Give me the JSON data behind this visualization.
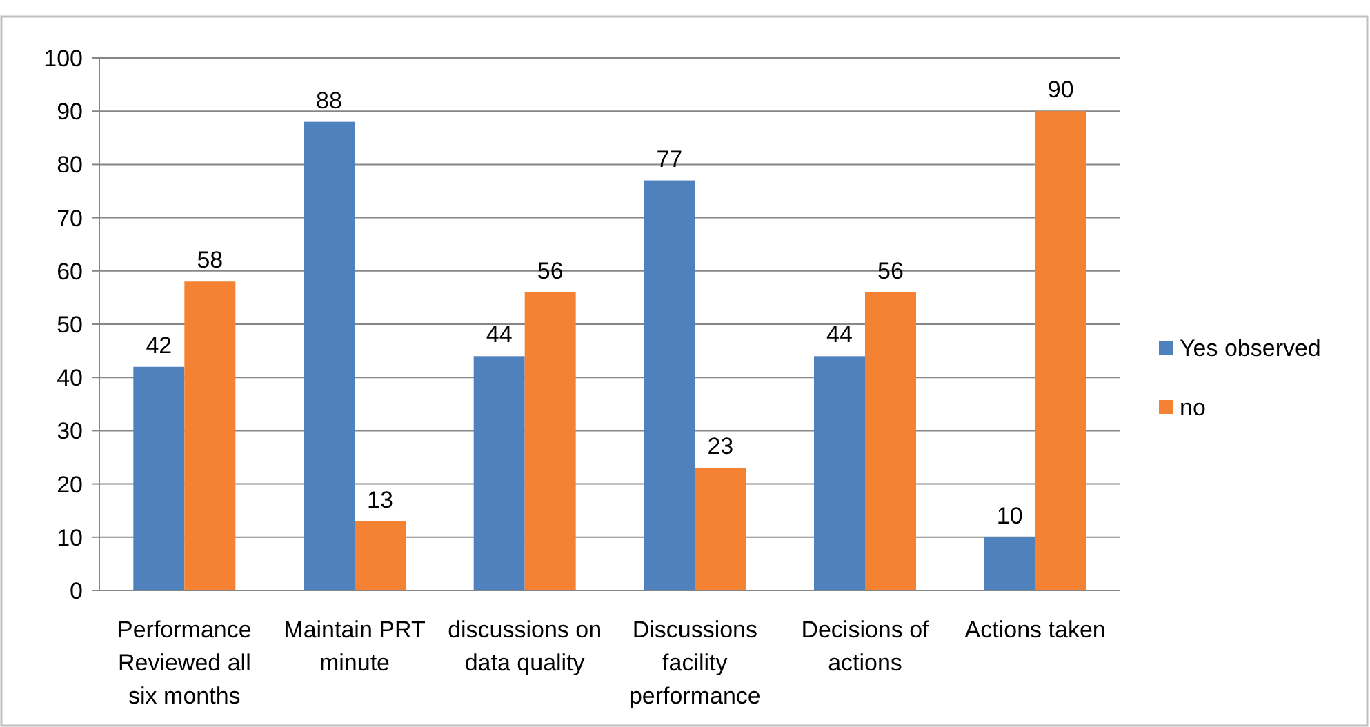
{
  "chart_data": {
    "type": "bar",
    "categories": [
      "Performance Reviewed all six months",
      "Maintain  PRT minute",
      "discussions on data quality",
      "Discussions facility performance",
      "Decisions of actions",
      "Actions taken"
    ],
    "series": [
      {
        "name": "Yes observed",
        "color": "#4f81bd",
        "values": [
          42,
          88,
          44,
          77,
          44,
          10
        ]
      },
      {
        "name": "no",
        "color": "#f58232",
        "values": [
          58,
          13,
          56,
          23,
          56,
          90
        ]
      }
    ],
    "ylim": [
      0,
      100
    ],
    "yticks": [
      0,
      10,
      20,
      30,
      40,
      50,
      60,
      70,
      80,
      90,
      100
    ],
    "grid": "y",
    "legend": "right",
    "data_labels": true
  }
}
